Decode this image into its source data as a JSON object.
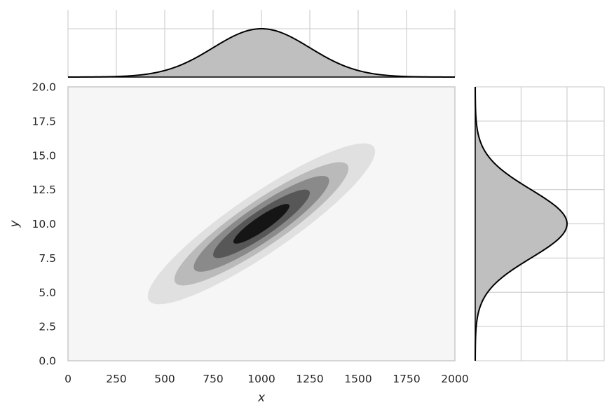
{
  "chart_data": {
    "type": "jointplot",
    "title": "",
    "xlabel": "x",
    "ylabel": "y",
    "xlim": [
      0,
      2000
    ],
    "ylim": [
      0.0,
      20.0
    ],
    "x_ticks": [
      0,
      250,
      500,
      750,
      1000,
      1250,
      1500,
      1750,
      2000
    ],
    "x_tick_labels": [
      "0",
      "250",
      "500",
      "750",
      "1000",
      "1250",
      "1500",
      "1750",
      "2000"
    ],
    "y_ticks": [
      0.0,
      2.5,
      5.0,
      7.5,
      10.0,
      12.5,
      15.0,
      17.5,
      20.0
    ],
    "y_tick_labels": [
      "0.0",
      "2.5",
      "5.0",
      "7.5",
      "10.0",
      "12.5",
      "15.0",
      "17.5",
      "20.0"
    ],
    "grid": true,
    "joint": {
      "type": "kde_contour_filled",
      "center": [
        1000,
        10
      ],
      "sd": [
        250,
        2.5
      ],
      "correlation": 0.9,
      "n_levels": 5,
      "level_colors": [
        "#f6f6f6",
        "#e0e0e0",
        "#bababa",
        "#8a8a8a",
        "#575757",
        "#151515"
      ]
    },
    "marginal_x": {
      "type": "kde",
      "mean": 1000,
      "sd": 250,
      "fill": "#bfbfbf",
      "line": "#000000"
    },
    "marginal_y": {
      "type": "kde",
      "mean": 10,
      "sd": 2.5,
      "fill": "#bfbfbf",
      "line": "#000000"
    }
  }
}
